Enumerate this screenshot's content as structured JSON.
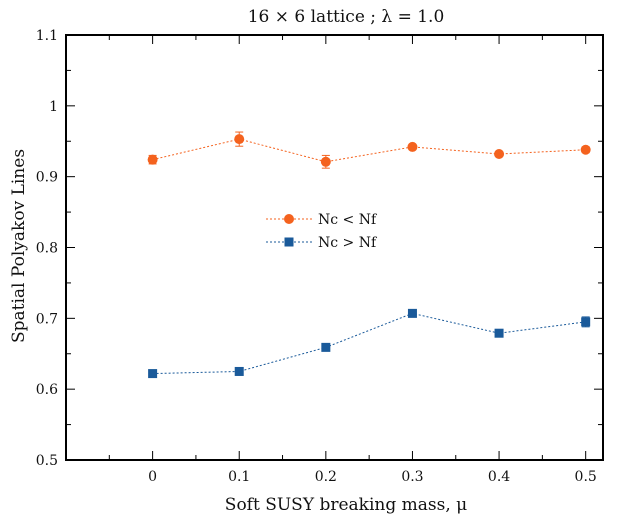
{
  "chart_data": {
    "type": "scatter",
    "title": "16 × 6 lattice ; λ = 1.0",
    "xlabel": "Soft SUSY breaking mass, μ",
    "ylabel": "Spatial Polyakov Lines",
    "xlim": [
      -0.1,
      0.52
    ],
    "ylim": [
      0.5,
      1.1
    ],
    "xticks": [
      0,
      0.1,
      0.2,
      0.3,
      0.4,
      0.5
    ],
    "xtick_labels": [
      "0",
      "0.1",
      "0.2",
      "0.3",
      "0.4",
      "0.5"
    ],
    "yticks": [
      0.5,
      0.6,
      0.7,
      0.8,
      0.9,
      1.0,
      1.1
    ],
    "ytick_labels": [
      "0.5",
      "0.6",
      "0.7",
      "0.8",
      "0.9",
      "1",
      "1.1"
    ],
    "legend_position": "center",
    "grid": false,
    "series": [
      {
        "name": "Nc < Nf",
        "color": "#f4621e",
        "marker": "circle",
        "line": "dotted",
        "x": [
          0,
          0.1,
          0.2,
          0.3,
          0.4,
          0.5
        ],
        "y": [
          0.924,
          0.953,
          0.921,
          0.942,
          0.932,
          0.938
        ],
        "yerr": [
          0.006,
          0.01,
          0.009,
          0.003,
          0.003,
          0.004
        ]
      },
      {
        "name": "Nc > Nf",
        "color": "#1a5a9a",
        "marker": "square",
        "line": "dotted",
        "x": [
          0,
          0.1,
          0.2,
          0.3,
          0.4,
          0.5
        ],
        "y": [
          0.622,
          0.625,
          0.659,
          0.707,
          0.679,
          0.695
        ],
        "yerr": [
          0.002,
          0.002,
          0.002,
          0.003,
          0.004,
          0.007
        ]
      }
    ]
  }
}
